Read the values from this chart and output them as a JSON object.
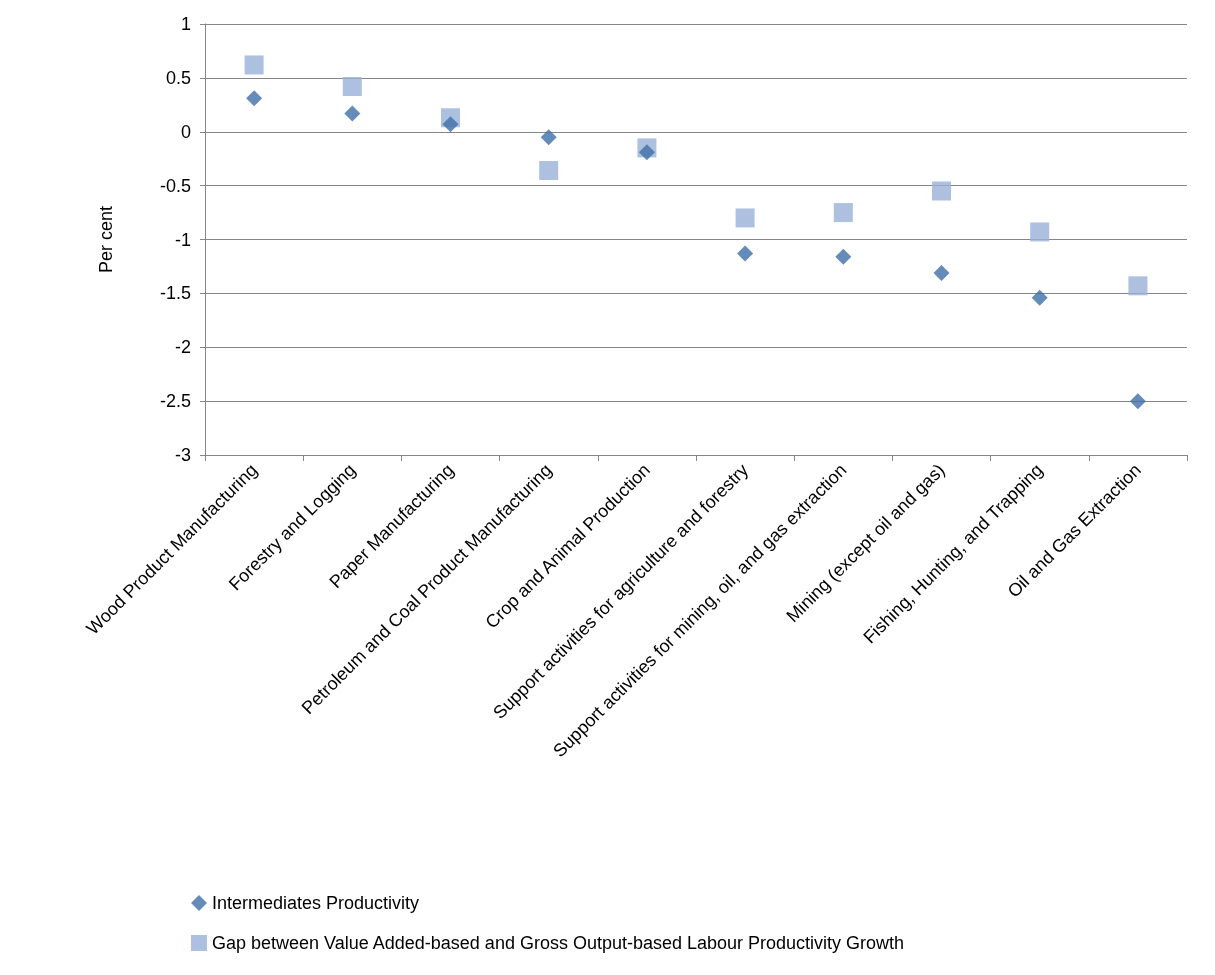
{
  "chart_data": {
    "type": "scatter",
    "ylabel": "Per cent",
    "categories": [
      "Wood Product Manufacturing",
      "Forestry and Logging",
      "Paper Manufacturing",
      "Petroleum and Coal Product Manufacturing",
      "Crop and Animal Production",
      "Support activities for agriculture and forestry",
      "Support activities for mining, oil, and gas extraction",
      "Mining (except oil and gas)",
      "Fishing, Hunting, and Trapping",
      "Oil and Gas Extraction"
    ],
    "series": [
      {
        "name": "Intermediates Productivity",
        "color": "#3f6fa8",
        "marker": "diamond",
        "values": [
          0.31,
          0.17,
          0.07,
          -0.05,
          -0.19,
          -1.13,
          -1.16,
          -1.31,
          -1.54,
          -2.5
        ]
      },
      {
        "name": "Gap between Value Added-based and Gross Output-based Labour Productivity Growth",
        "color": "#98b0d8",
        "marker": "square",
        "values": [
          0.62,
          0.42,
          0.13,
          -0.36,
          -0.15,
          -0.8,
          -0.75,
          -0.55,
          -0.93,
          -1.43
        ]
      }
    ],
    "ylim": [
      -3,
      1
    ],
    "yticks": [
      -3,
      -2.5,
      -2,
      -1.5,
      -1,
      -0.5,
      0,
      0.5,
      1
    ],
    "grid": "y",
    "legend": "bottom"
  }
}
